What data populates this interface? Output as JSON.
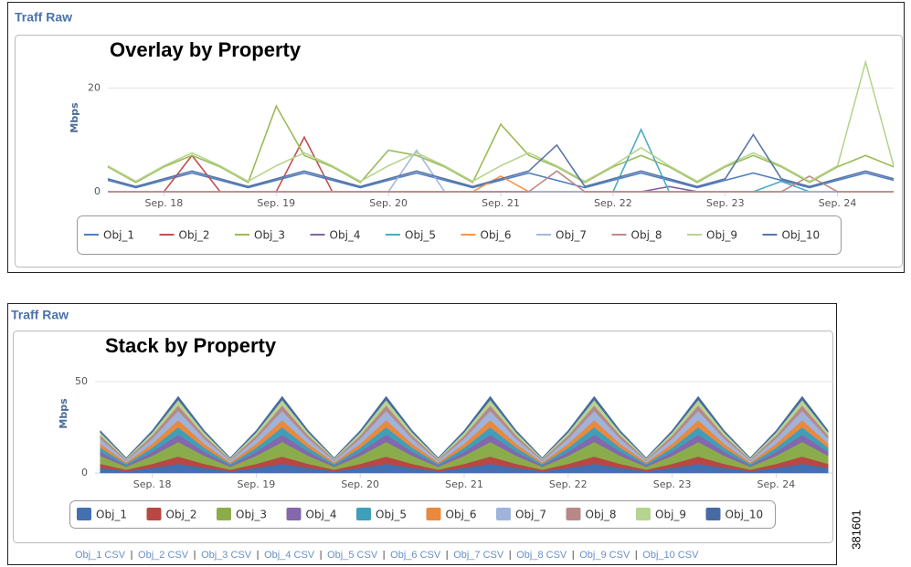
{
  "panels": [
    {
      "header": "Traff Raw"
    },
    {
      "header": "Traff Raw"
    }
  ],
  "csv_links": [
    "Obj_1 CSV",
    "Obj_2 CSV",
    "Obj_3 CSV",
    "Obj_4 CSV",
    "Obj_5 CSV",
    "Obj_6 CSV",
    "Obj_7 CSV",
    "Obj_8 CSV",
    "Obj_9 CSV",
    "Obj_10 CSV"
  ],
  "figure_id": "381601",
  "chart_data": [
    {
      "type": "line",
      "title": "Overlay by Property",
      "y_label": "Mbps",
      "x": [
        17.5,
        17.75,
        18,
        18.25,
        18.5,
        18.75,
        19,
        19.25,
        19.5,
        19.75,
        20,
        20.25,
        20.5,
        20.75,
        21,
        21.25,
        21.5,
        21.75,
        22,
        22.25,
        22.5,
        22.75,
        23,
        23.25,
        23.5,
        23.75,
        24,
        24.25,
        24.5
      ],
      "xlim": [
        17.5,
        24.5
      ],
      "xticks": [
        {
          "value": 18,
          "label": "Sep. 18"
        },
        {
          "value": 19,
          "label": "Sep. 19"
        },
        {
          "value": 20,
          "label": "Sep. 20"
        },
        {
          "value": 21,
          "label": "Sep. 21"
        },
        {
          "value": 22,
          "label": "Sep. 22"
        },
        {
          "value": 23,
          "label": "Sep. 23"
        },
        {
          "value": 24,
          "label": "Sep. 24"
        }
      ],
      "ylim": [
        0,
        28.5
      ],
      "yticks": [
        0,
        20
      ],
      "grid": true,
      "series": [
        {
          "name": "Obj_1",
          "color": "#4f7fc0",
          "values": [
            2.2,
            0.8,
            2.2,
            3.6,
            2.2,
            0.8,
            2.2,
            3.6,
            2.2,
            0.8,
            2.2,
            3.6,
            2.2,
            0.8,
            2.2,
            3.6,
            2.2,
            0.8,
            2.2,
            3.6,
            2.2,
            0.8,
            2.2,
            3.6,
            2.2,
            0.8,
            2.2,
            3.6,
            2.2
          ]
        },
        {
          "name": "Obj_2",
          "color": "#c0504d",
          "values": [
            0,
            0,
            0,
            7,
            0,
            0,
            0,
            10.5,
            0,
            0,
            0,
            0,
            0,
            0,
            0,
            0,
            0,
            0,
            0,
            0,
            0,
            0,
            0,
            0,
            0,
            0,
            0,
            0,
            0
          ]
        },
        {
          "name": "Obj_3",
          "color": "#9bbb59",
          "values": [
            4.8,
            1.8,
            4.8,
            7,
            4.8,
            1.8,
            16.5,
            7,
            4.8,
            1.8,
            8,
            7,
            4.8,
            1.8,
            13,
            7,
            4.8,
            1.8,
            4.8,
            7,
            4.8,
            1.8,
            4.8,
            7,
            4.8,
            1.8,
            4.8,
            7,
            4.8
          ]
        },
        {
          "name": "Obj_4",
          "color": "#8064a2",
          "values": [
            0,
            0,
            0,
            0,
            0,
            0,
            0,
            0,
            0,
            0,
            0,
            0,
            0,
            0,
            0,
            0,
            0,
            0,
            0,
            0,
            1,
            0,
            0,
            0,
            0,
            0,
            0,
            0,
            0
          ]
        },
        {
          "name": "Obj_5",
          "color": "#4bacc6",
          "values": [
            0,
            0,
            0,
            0,
            0,
            0,
            0,
            0,
            0,
            0,
            0,
            0,
            0,
            0,
            0,
            0,
            0,
            0,
            0,
            12,
            0,
            0,
            0,
            0,
            2,
            0,
            0,
            0,
            0
          ]
        },
        {
          "name": "Obj_6",
          "color": "#f79646",
          "values": [
            0,
            0,
            0,
            0,
            0,
            0,
            0,
            0,
            0,
            0,
            0,
            0,
            0,
            0,
            3,
            0,
            0,
            0,
            0,
            0,
            0,
            0,
            0,
            0,
            0,
            0,
            0,
            0,
            0
          ]
        },
        {
          "name": "Obj_7",
          "color": "#a5b8e0",
          "values": [
            0,
            0,
            0,
            0,
            0,
            0,
            0,
            0,
            0,
            0,
            0,
            8,
            0,
            0,
            0,
            0,
            0,
            0,
            0,
            0,
            0,
            0,
            0,
            0,
            0,
            0,
            0,
            0,
            0
          ]
        },
        {
          "name": "Obj_8",
          "color": "#c08a8a",
          "values": [
            0,
            0,
            0,
            0,
            0,
            0,
            0,
            0,
            0,
            0,
            0,
            0,
            0,
            0,
            0,
            0,
            4,
            0,
            0,
            0,
            0,
            0,
            0,
            0,
            0,
            3,
            0,
            0,
            0
          ]
        },
        {
          "name": "Obj_9",
          "color": "#b6d58e",
          "values": [
            5,
            2,
            5,
            7.5,
            5,
            2,
            5,
            7.5,
            5,
            2,
            5,
            7.5,
            5,
            2,
            5,
            7.5,
            5,
            2,
            5,
            8.5,
            5,
            2,
            5,
            7.5,
            5,
            2,
            5,
            25,
            5
          ]
        },
        {
          "name": "Obj_10",
          "color": "#5875a8",
          "values": [
            2.5,
            1,
            2.5,
            4,
            2.5,
            1,
            2.5,
            4,
            2.5,
            1,
            2.5,
            4,
            2.5,
            1,
            2.5,
            4,
            9,
            1,
            2.5,
            4,
            2.5,
            1,
            2.5,
            11,
            2.5,
            1,
            2.5,
            4,
            2.5
          ]
        }
      ]
    },
    {
      "type": "area",
      "stacked": true,
      "title": "Stack by Property",
      "y_label": "Mbps",
      "x": [
        17.5,
        17.75,
        18,
        18.25,
        18.5,
        18.75,
        19,
        19.25,
        19.5,
        19.75,
        20,
        20.25,
        20.5,
        20.75,
        21,
        21.25,
        21.5,
        21.75,
        22,
        22.25,
        22.5,
        22.75,
        23,
        23.25,
        23.5,
        23.75,
        24,
        24.25,
        24.5
      ],
      "xlim": [
        17.45,
        24.55
      ],
      "xticks": [
        {
          "value": 18,
          "label": "Sep. 18"
        },
        {
          "value": 19,
          "label": "Sep. 19"
        },
        {
          "value": 20,
          "label": "Sep. 20"
        },
        {
          "value": 21,
          "label": "Sep. 21"
        },
        {
          "value": 22,
          "label": "Sep. 22"
        },
        {
          "value": 23,
          "label": "Sep. 23"
        },
        {
          "value": 24,
          "label": "Sep. 24"
        }
      ],
      "ylim": [
        0,
        65
      ],
      "yticks": [
        0,
        50
      ],
      "grid": true,
      "series": [
        {
          "name": "Obj_1",
          "color": "#4270b0",
          "values": [
            2.8,
            1,
            2.8,
            5,
            2.8,
            1,
            2.8,
            5,
            2.8,
            1,
            2.8,
            5,
            2.8,
            1,
            2.8,
            5,
            2.8,
            1,
            2.8,
            5,
            2.8,
            1,
            2.8,
            5,
            2.8,
            1,
            2.8,
            5,
            2.8
          ]
        },
        {
          "name": "Obj_2",
          "color": "#b84744",
          "values": [
            2.2,
            0.8,
            2.2,
            4,
            2.2,
            0.8,
            2.2,
            4,
            2.2,
            0.8,
            2.2,
            4,
            2.2,
            0.8,
            2.2,
            4,
            2.2,
            0.8,
            2.2,
            4,
            2.2,
            0.8,
            2.2,
            4,
            2.2,
            0.8,
            2.2,
            4,
            2.2
          ]
        },
        {
          "name": "Obj_3",
          "color": "#8bac4a",
          "values": [
            4.4,
            1.6,
            4.4,
            8,
            4.4,
            1.6,
            4.4,
            8,
            4.4,
            1.6,
            4.4,
            8,
            4.4,
            1.6,
            4.4,
            8,
            4.4,
            1.6,
            4.4,
            8,
            4.4,
            1.6,
            4.4,
            8,
            4.4,
            1.6,
            4.4,
            8,
            4.4
          ]
        },
        {
          "name": "Obj_4",
          "color": "#8468ac",
          "values": [
            2.2,
            0.8,
            2.2,
            4,
            2.2,
            0.8,
            2.2,
            4,
            2.2,
            0.8,
            2.2,
            4,
            2.2,
            0.8,
            2.2,
            4,
            2.2,
            0.8,
            2.2,
            4,
            2.2,
            0.8,
            2.2,
            4,
            2.2,
            0.8,
            2.2,
            4,
            2.2
          ]
        },
        {
          "name": "Obj_5",
          "color": "#3f9eb8",
          "values": [
            2.2,
            0.8,
            2.2,
            4,
            2.2,
            0.8,
            2.2,
            4,
            2.2,
            0.8,
            2.2,
            4,
            2.2,
            0.8,
            2.2,
            4,
            2.2,
            0.8,
            2.2,
            4,
            2.2,
            0.8,
            2.2,
            4,
            2.2,
            0.8,
            2.2,
            4,
            2.2
          ]
        },
        {
          "name": "Obj_6",
          "color": "#e8893e",
          "values": [
            2.2,
            0.8,
            2.2,
            4,
            2.2,
            0.8,
            2.2,
            4,
            2.2,
            0.8,
            2.2,
            4,
            2.2,
            0.8,
            2.2,
            4,
            2.2,
            0.8,
            2.2,
            4,
            2.2,
            0.8,
            2.2,
            4,
            2.2,
            0.8,
            2.2,
            4,
            2.2
          ]
        },
        {
          "name": "Obj_7",
          "color": "#9fb3db",
          "values": [
            2.8,
            1,
            2.8,
            5,
            2.8,
            1,
            2.8,
            5,
            2.8,
            1,
            2.8,
            5,
            2.8,
            1,
            2.8,
            5,
            2.8,
            1,
            2.8,
            5,
            2.8,
            1,
            2.8,
            5,
            2.8,
            1,
            2.8,
            5,
            2.8
          ]
        },
        {
          "name": "Obj_8",
          "color": "#b88886",
          "values": [
            1.7,
            0.6,
            1.7,
            3,
            1.7,
            0.6,
            1.7,
            3,
            1.7,
            0.6,
            1.7,
            3,
            1.7,
            0.6,
            1.7,
            3,
            1.7,
            0.6,
            1.7,
            3,
            1.7,
            0.6,
            1.7,
            3,
            1.7,
            0.6,
            1.7,
            3,
            1.7
          ]
        },
        {
          "name": "Obj_9",
          "color": "#b5d490",
          "values": [
            1.7,
            0.6,
            1.7,
            3,
            1.7,
            0.6,
            1.7,
            3,
            1.7,
            0.6,
            1.7,
            3,
            1.7,
            0.6,
            1.7,
            3,
            1.7,
            0.6,
            1.7,
            3,
            1.7,
            0.6,
            1.7,
            3,
            1.7,
            0.6,
            1.7,
            3,
            1.7
          ]
        },
        {
          "name": "Obj_10",
          "color": "#476aa2",
          "values": [
            1.1,
            0.4,
            1.1,
            2,
            1.1,
            0.4,
            1.1,
            2,
            1.1,
            0.4,
            1.1,
            2,
            1.1,
            0.4,
            1.1,
            2,
            1.1,
            0.4,
            1.1,
            2,
            1.1,
            0.4,
            1.1,
            2,
            1.1,
            0.4,
            1.1,
            2,
            1.1
          ]
        }
      ]
    }
  ]
}
